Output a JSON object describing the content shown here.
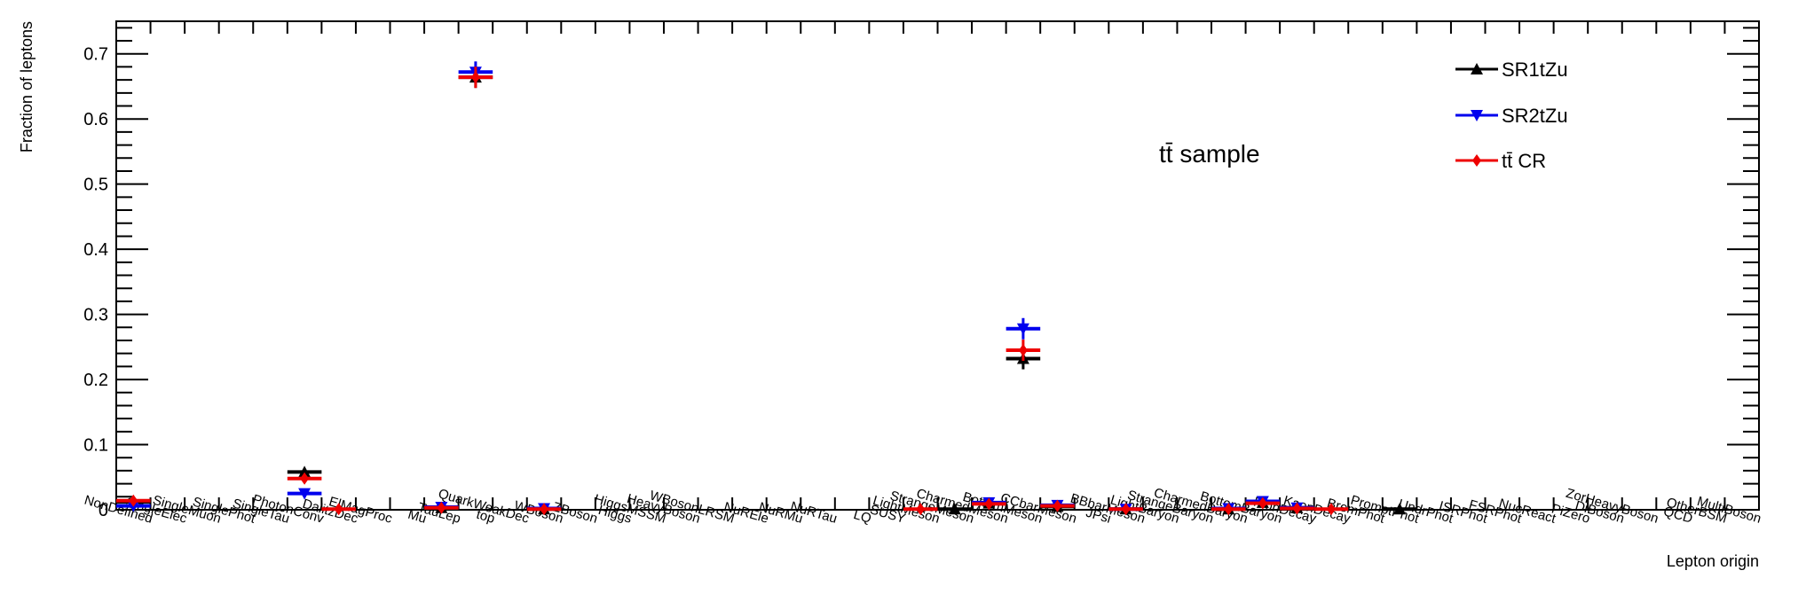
{
  "chart_data": {
    "type": "scatter",
    "xlabel": "Lepton origin",
    "ylabel": "Fraction of leptons",
    "ylim": [
      0,
      0.75
    ],
    "yticks": [
      "0",
      "0.1",
      "0.2",
      "0.3",
      "0.4",
      "0.5",
      "0.6",
      "0.7"
    ],
    "grid": false,
    "legend_position": "top-right",
    "annotation": "tt̄ sample",
    "categories": [
      "NonDefined",
      "SingleElec",
      "SingleMuon",
      "SinglePhot",
      "SingleTau",
      "PhotonConv",
      "DalitzDec",
      "ElMagProc",
      "Mu",
      "TauLep",
      "top",
      "QuarkWeakDec",
      "WBoson",
      "ZBoson",
      "Higgs",
      "HiggsMSSM",
      "HeavyBoson",
      "WBosonLRSM",
      "NuREle",
      "NuRMu",
      "NuRTau",
      "LQ",
      "SUSY",
      "LightMeson",
      "StrangeMeson",
      "CharmedMeson",
      "BottomMeson",
      "CCbarMeson",
      "JPsi",
      "BBbarMeson",
      "LightBaryon",
      "StrangeBaryon",
      "CharmedBaryon",
      "BottomBaryon",
      "PionDecay",
      "KaonDecay",
      "BremPhot",
      "PromptPhot",
      "UndrPhot",
      "ISRPhot",
      "FSRPhot",
      "NucReact",
      "PiZero",
      "DiBoson",
      "ZorHeavyBoson",
      "QCD",
      "OtherBSM",
      "MultiBoson"
    ],
    "series": [
      {
        "name": "SR1tZu",
        "color": "#000000",
        "marker": "triangle-up",
        "values": [
          0.012,
          0,
          0,
          0,
          0,
          0.058,
          0,
          0,
          0,
          0.003,
          0.664,
          0,
          0.001,
          0,
          0,
          0,
          0,
          0,
          0,
          0,
          0,
          0,
          0,
          0,
          0.001,
          0.01,
          0.232,
          0.005,
          0,
          0.001,
          0,
          0,
          0.001,
          0.011,
          0.003,
          0,
          0,
          0.001,
          0,
          0,
          0,
          0,
          0,
          0,
          0,
          0,
          0,
          0
        ]
      },
      {
        "name": "SR2tZu",
        "color": "#0000ee",
        "marker": "triangle-down",
        "values": [
          0.006,
          0,
          0,
          0,
          0,
          0.025,
          0,
          0,
          0,
          0.004,
          0.672,
          0,
          0.002,
          0,
          0,
          0,
          0,
          0,
          0,
          0,
          0,
          0,
          0,
          0,
          0,
          0.011,
          0.278,
          0.007,
          0,
          0.001,
          0,
          0,
          0.002,
          0.013,
          0.003,
          0,
          0,
          0,
          0,
          0,
          0,
          0,
          0,
          0,
          0,
          0,
          0,
          0
        ]
      },
      {
        "name": "tt̄ CR",
        "color": "#ee0000",
        "marker": "diamond",
        "values": [
          0.014,
          0,
          0,
          0,
          0,
          0.048,
          0.001,
          0,
          0,
          0.003,
          0.664,
          0,
          0.001,
          0,
          0,
          0,
          0,
          0,
          0,
          0,
          0,
          0,
          0,
          0.001,
          0,
          0.009,
          0.245,
          0.006,
          0,
          0.001,
          0,
          0,
          0.001,
          0.01,
          0.002,
          0.001,
          0,
          0,
          0,
          0,
          0,
          0,
          0,
          0,
          0,
          0,
          0,
          0
        ]
      }
    ]
  }
}
